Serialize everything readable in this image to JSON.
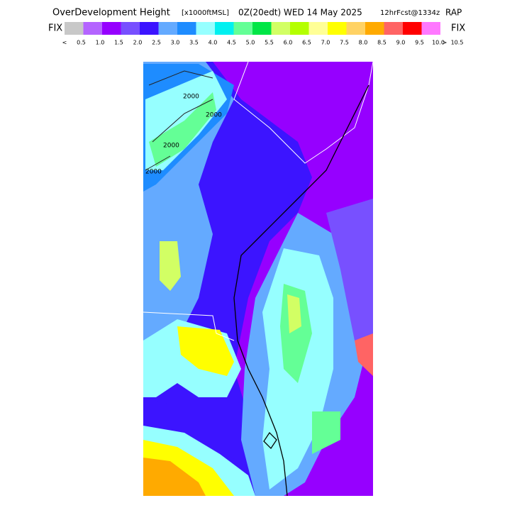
{
  "header": {
    "title": "OverDevelopment Height",
    "units": "[x1000ftMSL]",
    "time": "0Z(20edt) WED 14 May 2025",
    "forecast": "12hrFcst@1334z",
    "model": "RAP"
  },
  "colorbar": {
    "left_label": "FIX",
    "right_label": "FIX",
    "colors": [
      "#c8c8c8",
      "#b464ff",
      "#9600ff",
      "#7850ff",
      "#3c14ff",
      "#64aaff",
      "#1e8cff",
      "#96ffff",
      "#00f0f0",
      "#64ff96",
      "#00e646",
      "#d2ff64",
      "#b4ff00",
      "#ffff96",
      "#ffff00",
      "#ffd264",
      "#ffaa00",
      "#ff6464",
      "#ff0000",
      "#ff78ff"
    ],
    "end_color": "#ff00c8",
    "labels": [
      "<",
      "0.5",
      "1.0",
      "1.5",
      "2.0",
      "2.5",
      "3.0",
      "3.5",
      "4.0",
      "4.5",
      "5.0",
      "5.5",
      "6.0",
      "6.5",
      "7.0",
      "7.5",
      "8.0",
      "8.5",
      "9.0",
      "9.5",
      "10.0",
      "10.5",
      ">"
    ]
  },
  "map": {
    "contour_labels": [
      "2000",
      "2000",
      "2000",
      "2000"
    ]
  }
}
